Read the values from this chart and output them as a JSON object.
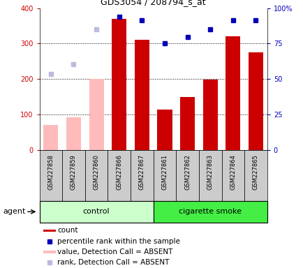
{
  "title": "GDS3054 / 208794_s_at",
  "samples": [
    "GSM227858",
    "GSM227859",
    "GSM227860",
    "GSM227866",
    "GSM227867",
    "GSM227861",
    "GSM227862",
    "GSM227863",
    "GSM227864",
    "GSM227865"
  ],
  "count_values": [
    null,
    null,
    null,
    370,
    310,
    115,
    150,
    198,
    320,
    275
  ],
  "count_absent": [
    70,
    92,
    200,
    null,
    null,
    null,
    null,
    null,
    null,
    null
  ],
  "rank_values": [
    null,
    null,
    null,
    375,
    365,
    300,
    318,
    340,
    365,
    365
  ],
  "rank_absent": [
    215,
    242,
    340,
    null,
    null,
    null,
    null,
    null,
    null,
    null
  ],
  "control_n": 5,
  "smoke_n": 5,
  "ylim_left": [
    0,
    400
  ],
  "yticks_left": [
    0,
    100,
    200,
    300,
    400
  ],
  "ytick_labels_right": [
    "0",
    "25",
    "50",
    "75",
    "100%"
  ],
  "color_count": "#cc0000",
  "color_rank": "#0000bb",
  "color_absent_count": "#ffbbbb",
  "color_absent_rank": "#bbbbdd",
  "color_control_bg": "#ccffcc",
  "color_smoke_bg": "#44ee44",
  "color_xticklabels_bg": "#cccccc",
  "agent_label": "agent",
  "control_label": "control",
  "smoke_label": "cigarette smoke",
  "legend_items": [
    {
      "label": "count",
      "color": "#cc0000",
      "type": "bar"
    },
    {
      "label": "percentile rank within the sample",
      "color": "#0000bb",
      "type": "square"
    },
    {
      "label": "value, Detection Call = ABSENT",
      "color": "#ffbbbb",
      "type": "bar"
    },
    {
      "label": "rank, Detection Call = ABSENT",
      "color": "#bbbbdd",
      "type": "square"
    }
  ],
  "grid_lines": [
    100,
    200,
    300
  ],
  "bar_width": 0.65
}
